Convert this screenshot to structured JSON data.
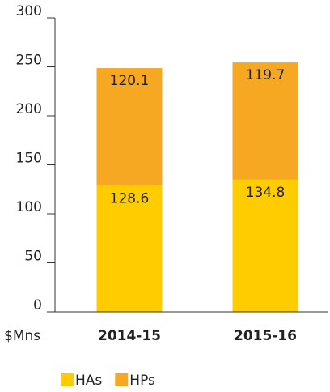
{
  "chart_data": {
    "type": "bar",
    "stacked": true,
    "y_label": "$Mns",
    "categories": [
      "2014-15",
      "2015-16"
    ],
    "series": [
      {
        "name": "HAs",
        "color": "#ffcc00",
        "values": [
          128.6,
          134.8
        ]
      },
      {
        "name": "HPs",
        "color": "#f7a823",
        "values": [
          120.1,
          119.7
        ]
      }
    ],
    "ylim": [
      0,
      300
    ],
    "yticks": [
      0,
      50,
      100,
      150,
      200,
      250,
      300
    ],
    "legend": "bottom"
  }
}
